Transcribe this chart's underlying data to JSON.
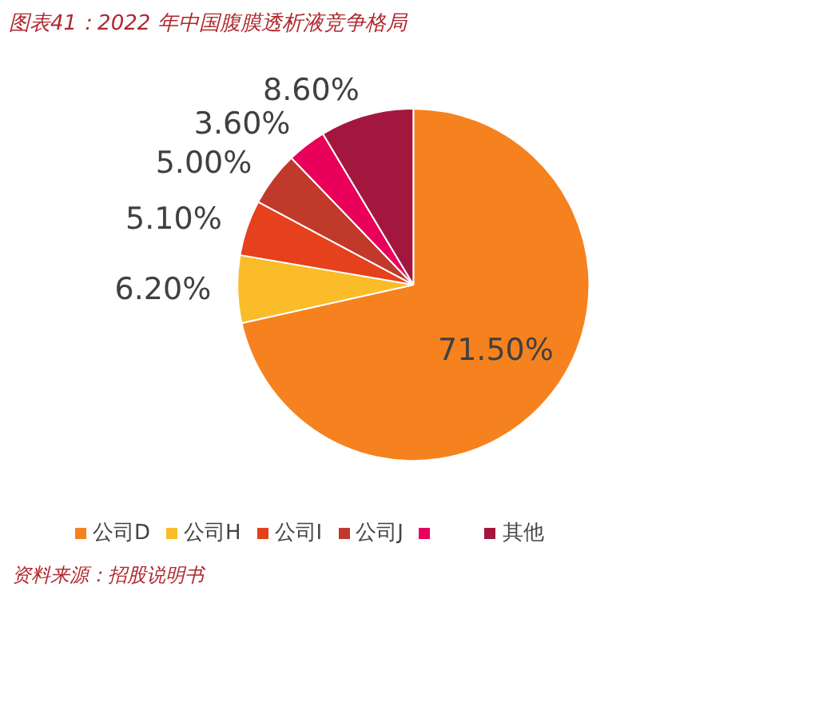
{
  "chart_data": {
    "type": "pie",
    "title": "图表41：2022 年中国腹膜透析液竞争格局",
    "categories": [
      "公司D",
      "公司H",
      "公司I",
      "公司J",
      null,
      "其他"
    ],
    "values": [
      71.5,
      6.2,
      5.1,
      5.0,
      3.6,
      8.6
    ],
    "colors": [
      "#f5821f",
      "#fbbc2a",
      "#e5411c",
      "#c0392b",
      "#e8005a",
      "#a3173f"
    ],
    "value_labels": [
      "71.50%",
      "6.20%",
      "5.10%",
      "5.00%",
      "3.60%",
      "8.60%"
    ],
    "legend": "bottom",
    "annotations": [
      "资料来源：招股说明书"
    ]
  }
}
